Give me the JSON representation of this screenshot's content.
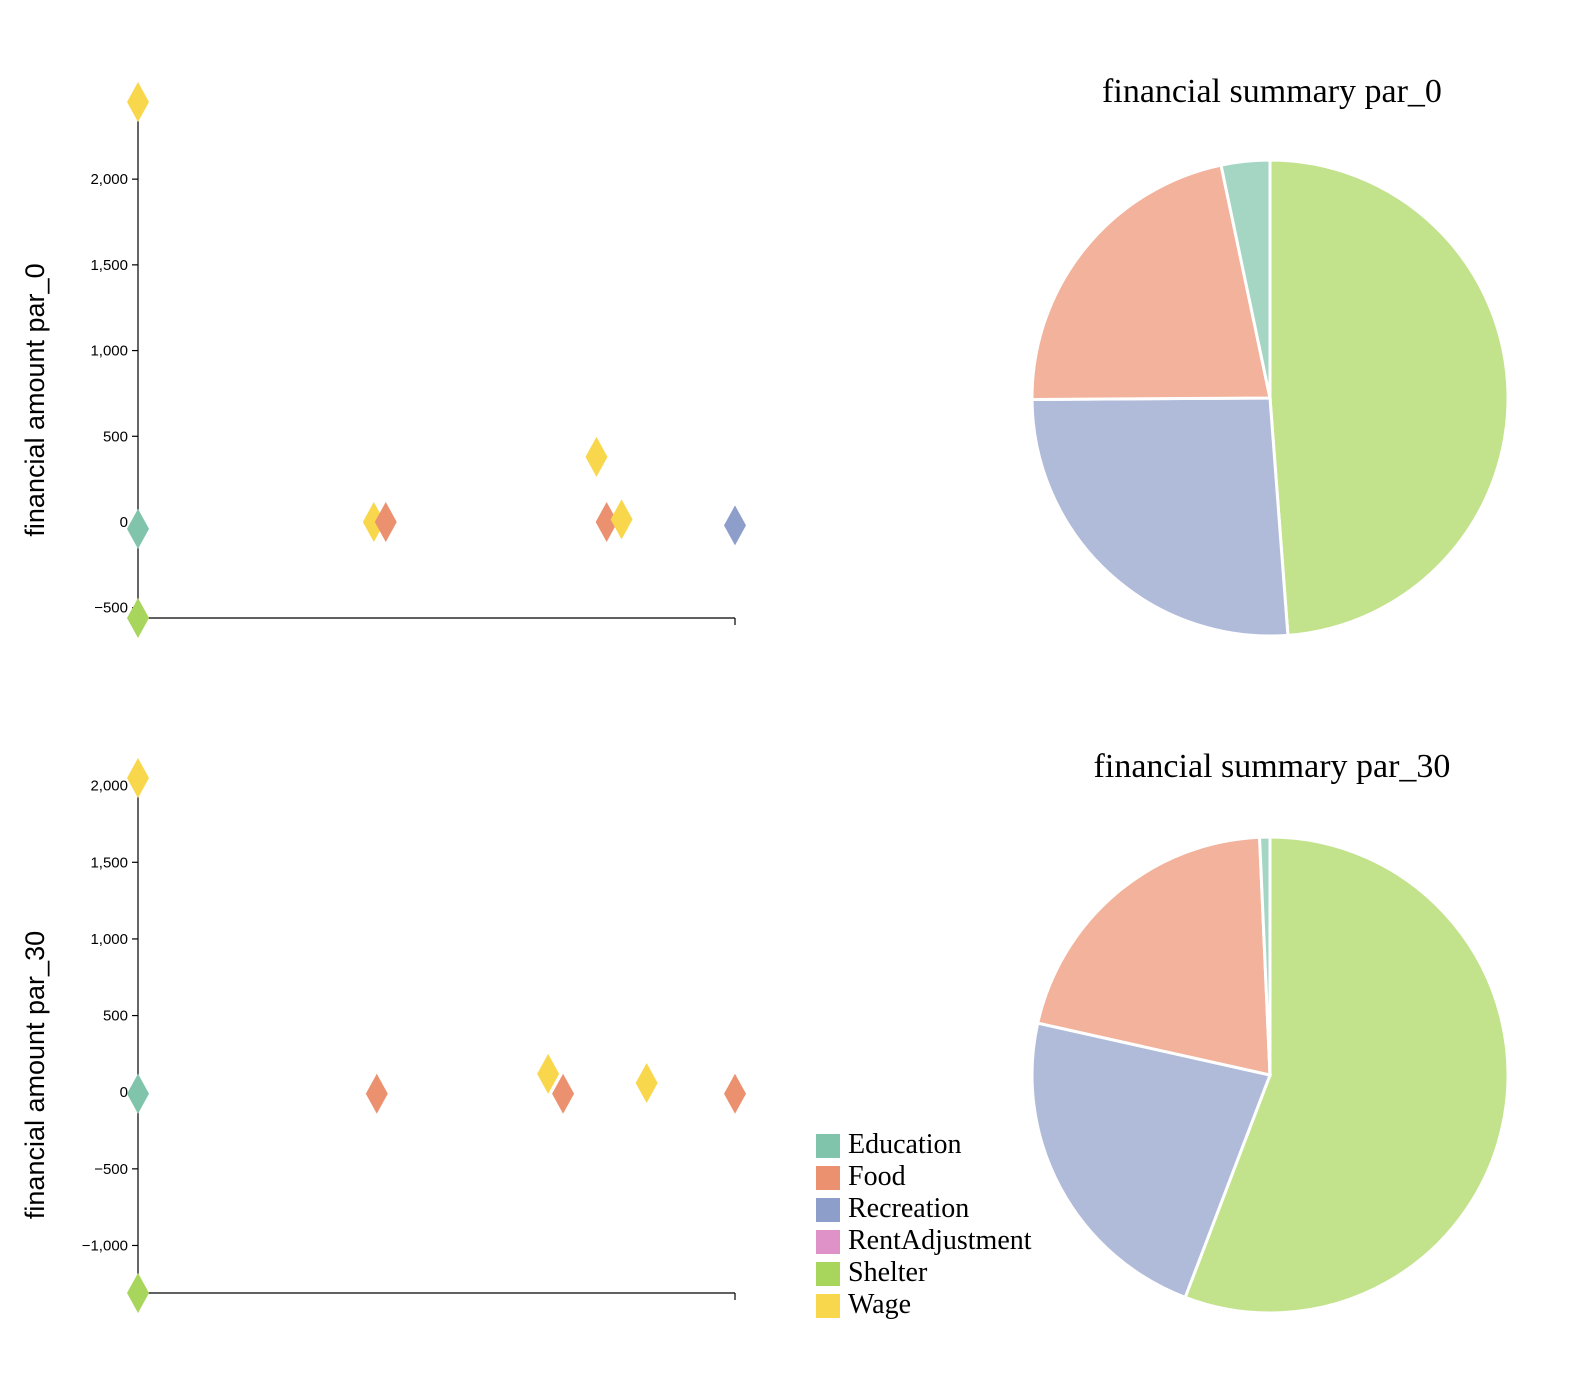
{
  "colors": {
    "Education": "#7fc4ab",
    "Food": "#ec9170",
    "Recreation": "#8e9ecb",
    "RentAdjustment": "#df92c8",
    "Shelter": "#a8d55b",
    "Wage": "#f8d74c"
  },
  "legend": {
    "items": [
      "Education",
      "Food",
      "Recreation",
      "RentAdjustment",
      "Shelter",
      "Wage"
    ]
  },
  "chart_data": [
    {
      "type": "scatter",
      "title": "",
      "ylabel": "financial amount par_0",
      "xlabel": "",
      "ylim": [
        -560,
        2450
      ],
      "yticks": [
        -500,
        0,
        500,
        1000,
        1500,
        2000
      ],
      "xlim": [
        0,
        1
      ],
      "marker": "diamond",
      "points": [
        {
          "x": 0.0,
          "y": 2450,
          "category": "Wage"
        },
        {
          "x": 0.0,
          "y": -40,
          "category": "Education"
        },
        {
          "x": 0.0,
          "y": -560,
          "category": "Shelter"
        },
        {
          "x": 0.395,
          "y": 0,
          "category": "Wage"
        },
        {
          "x": 0.415,
          "y": 0,
          "category": "Food"
        },
        {
          "x": 0.768,
          "y": 380,
          "category": "Wage"
        },
        {
          "x": 0.785,
          "y": 0,
          "category": "Food"
        },
        {
          "x": 0.81,
          "y": 15,
          "category": "Wage"
        },
        {
          "x": 1.0,
          "y": -20,
          "category": "Recreation"
        }
      ]
    },
    {
      "type": "scatter",
      "title": "",
      "ylabel": "financial amount par_30",
      "xlabel": "",
      "ylim": [
        -1310,
        2050
      ],
      "yticks": [
        -1000,
        -500,
        0,
        500,
        1000,
        1500,
        2000
      ],
      "xlim": [
        0,
        1
      ],
      "marker": "diamond",
      "points": [
        {
          "x": 0.0,
          "y": 2050,
          "category": "Wage"
        },
        {
          "x": 0.0,
          "y": -10,
          "category": "Education"
        },
        {
          "x": 0.0,
          "y": -1310,
          "category": "Shelter"
        },
        {
          "x": 0.4,
          "y": -10,
          "category": "Food"
        },
        {
          "x": 0.687,
          "y": 120,
          "category": "Wage"
        },
        {
          "x": 0.712,
          "y": -10,
          "category": "Food"
        },
        {
          "x": 0.852,
          "y": 60,
          "category": "Wage"
        },
        {
          "x": 1.0,
          "y": -10,
          "category": "Food"
        }
      ]
    },
    {
      "type": "pie",
      "title": "financial summary par_0",
      "slices": [
        {
          "category": "Shelter",
          "value": 48.8
        },
        {
          "category": "Recreation",
          "value": 26.1
        },
        {
          "category": "Food",
          "value": 21.8
        },
        {
          "category": "Education",
          "value": 3.3
        }
      ]
    },
    {
      "type": "pie",
      "title": "financial summary par_30",
      "slices": [
        {
          "category": "Shelter",
          "value": 55.8
        },
        {
          "category": "Recreation",
          "value": 22.7
        },
        {
          "category": "Food",
          "value": 20.8
        },
        {
          "category": "Education",
          "value": 0.7
        }
      ]
    }
  ]
}
